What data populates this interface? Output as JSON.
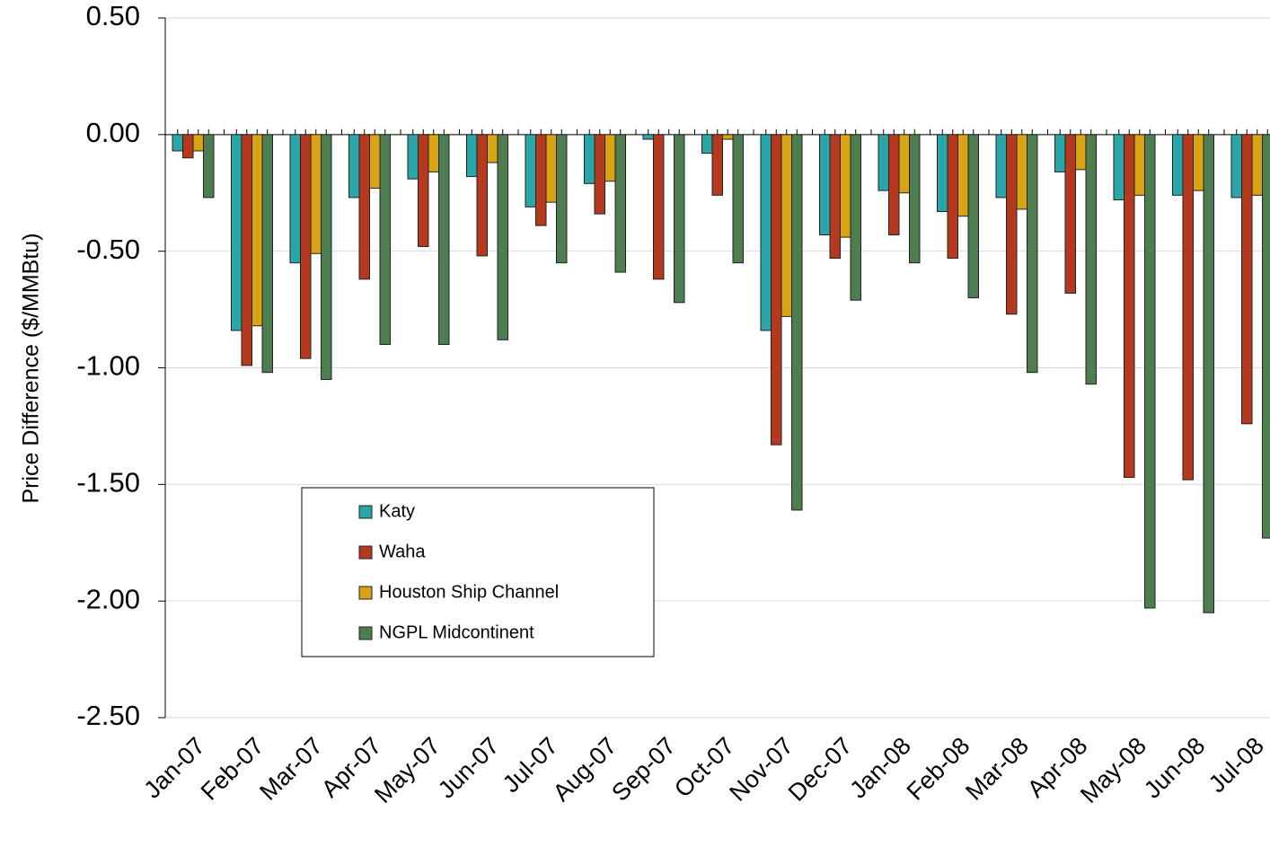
{
  "chart_data": {
    "type": "bar",
    "y_label": "Price Difference  ($/MMBtu)",
    "categories": [
      "Jan-07",
      "Feb-07",
      "Mar-07",
      "Apr-07",
      "May-07",
      "Jun-07",
      "Jul-07",
      "Aug-07",
      "Sep-07",
      "Oct-07",
      "Nov-07",
      "Dec-07",
      "Jan-08",
      "Feb-08",
      "Mar-08",
      "Apr-08",
      "May-08",
      "Jun-08",
      "Jul-08"
    ],
    "series": [
      {
        "name": "Katy",
        "color": "#2aa5a8",
        "values": [
          -0.07,
          -0.84,
          -0.55,
          -0.27,
          -0.19,
          -0.18,
          -0.31,
          -0.21,
          -0.02,
          -0.08,
          -0.84,
          -0.43,
          -0.24,
          -0.33,
          -0.27,
          -0.16,
          -0.28,
          -0.26,
          -0.27
        ]
      },
      {
        "name": "Waha",
        "color": "#b5391e",
        "values": [
          -0.1,
          -0.99,
          -0.96,
          -0.62,
          -0.48,
          -0.52,
          -0.39,
          -0.34,
          -0.62,
          -0.26,
          -1.33,
          -0.53,
          -0.43,
          -0.53,
          -0.77,
          -0.68,
          -1.47,
          -1.48,
          -1.24
        ]
      },
      {
        "name": "Houston Ship Channel",
        "color": "#d9a316",
        "values": [
          -0.07,
          -0.82,
          -0.51,
          -0.23,
          -0.16,
          -0.12,
          -0.29,
          -0.2,
          0,
          -0.02,
          -0.78,
          -0.44,
          -0.25,
          -0.35,
          -0.32,
          -0.15,
          -0.26,
          -0.24,
          -0.26
        ]
      },
      {
        "name": "NGPL Midcontinent",
        "color": "#4e7d4f",
        "values": [
          -0.27,
          -1.02,
          -1.05,
          -0.9,
          -0.9,
          -0.88,
          -0.55,
          -0.59,
          -0.72,
          -0.55,
          -1.61,
          -0.71,
          -0.55,
          -0.7,
          -1.02,
          -1.07,
          -2.03,
          -2.05,
          -1.73
        ]
      }
    ],
    "ylim": [
      -2.5,
      0.5
    ],
    "yticks": [
      {
        "value": -2.5,
        "label": "-2.50"
      },
      {
        "value": -2,
        "label": "-2.00"
      },
      {
        "value": -1.5,
        "label": "-1.50"
      },
      {
        "value": -1,
        "label": "-1.00"
      },
      {
        "value": -0.5,
        "label": "-0.50"
      },
      {
        "value": 0,
        "label": "0.00"
      },
      {
        "value": 0.5,
        "label": "0.50"
      }
    ],
    "grid": true
  }
}
